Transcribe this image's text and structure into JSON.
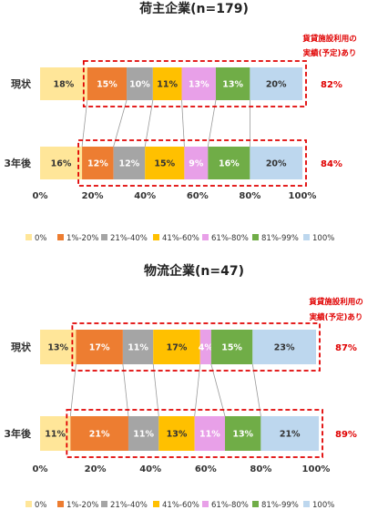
{
  "chart_data": [
    {
      "type": "bar",
      "orientation": "horizontal-stacked-100",
      "title": "荷主企業(n=179)",
      "categories": [
        "現状",
        "3年後"
      ],
      "legend": [
        "0%",
        "1%-20%",
        "21%-40%",
        "41%-60%",
        "61%-80%",
        "81%-99%",
        "100%"
      ],
      "series": [
        {
          "name": "0%",
          "values": [
            18,
            16
          ]
        },
        {
          "name": "1%-20%",
          "values": [
            15,
            12
          ]
        },
        {
          "name": "21%-40%",
          "values": [
            10,
            12
          ]
        },
        {
          "name": "41%-60%",
          "values": [
            11,
            15
          ]
        },
        {
          "name": "61%-80%",
          "values": [
            13,
            9
          ]
        },
        {
          "name": "81%-99%",
          "values": [
            13,
            16
          ]
        },
        {
          "name": "100%",
          "values": [
            20,
            20
          ]
        }
      ],
      "xticks": [
        "0%",
        "20%",
        "40%",
        "60%",
        "80%",
        "100%"
      ],
      "xlim": [
        0,
        100
      ],
      "annotation": "貨貸施設利用の\n実績(予定)あり",
      "highlight_totals": [
        "82%",
        "84%"
      ],
      "legend_position": "bottom"
    },
    {
      "type": "bar",
      "orientation": "horizontal-stacked-100",
      "title": "物流企業(n=47)",
      "categories": [
        "現状",
        "3年後"
      ],
      "legend": [
        "0%",
        "1%-20%",
        "21%-40%",
        "41%-60%",
        "61%-80%",
        "81%-99%",
        "100%"
      ],
      "series": [
        {
          "name": "0%",
          "values": [
            13,
            11
          ]
        },
        {
          "name": "1%-20%",
          "values": [
            17,
            21
          ]
        },
        {
          "name": "21%-40%",
          "values": [
            11,
            11
          ]
        },
        {
          "name": "41%-60%",
          "values": [
            17,
            13
          ]
        },
        {
          "name": "61%-80%",
          "values": [
            4,
            11
          ]
        },
        {
          "name": "81%-99%",
          "values": [
            15,
            13
          ]
        },
        {
          "name": "100%",
          "values": [
            23,
            21
          ]
        }
      ],
      "xticks": [
        "0%",
        "20%",
        "40%",
        "60%",
        "80%",
        "100%"
      ],
      "xlim": [
        0,
        100
      ],
      "annotation": "貨貸施設利用の\n実績(予定)あり",
      "highlight_totals": [
        "87%",
        "89%"
      ],
      "legend_position": "bottom"
    }
  ],
  "colors": [
    "#ffe699",
    "#ed7d31",
    "#a5a5a5",
    "#ffc000",
    "#e8a0e8",
    "#70ad47",
    "#bdd7ee"
  ],
  "seg_text_colors": [
    "#333333",
    "#ffffff",
    "#ffffff",
    "#333333",
    "#ffffff",
    "#ffffff",
    "#333333"
  ],
  "highlight_color": "#e00000"
}
